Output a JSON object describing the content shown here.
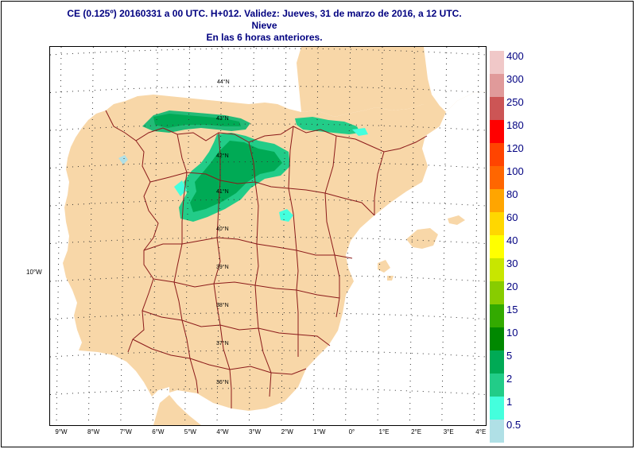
{
  "title": {
    "line1": "CE (0.125º) 20160331 a 00 UTC.  H+012. Validez: Jueves, 31 de marzo de 2016,  a  12 UTC.",
    "line2": "Nieve",
    "line3": "En las 6 horas anteriores."
  },
  "map": {
    "land_color": "#f8d7a8",
    "sea_color": "#ffffff",
    "border_color": "#8b1a1a",
    "grid_color": "#333333",
    "left_longitude_label": "10°W",
    "lon_labels": [
      "9°W",
      "8°W",
      "7°W",
      "6°W",
      "5°W",
      "4°W",
      "3°W",
      "2°W",
      "1°W",
      "0°",
      "1°E",
      "2°E",
      "3°E",
      "4°E"
    ],
    "lat_labels": [
      "44°N",
      "43°N",
      "42°N",
      "41°N",
      "40°N",
      "39°N",
      "38°N",
      "37°N",
      "36°N"
    ]
  },
  "legend": {
    "items": [
      {
        "label": "400",
        "color": "#f0c8c8"
      },
      {
        "label": "300",
        "color": "#e09a9a"
      },
      {
        "label": "250",
        "color": "#cc5555"
      },
      {
        "label": "180",
        "color": "#ff0000"
      },
      {
        "label": "120",
        "color": "#ff4400"
      },
      {
        "label": "100",
        "color": "#ff6600"
      },
      {
        "label": "80",
        "color": "#ffa500"
      },
      {
        "label": "60",
        "color": "#ffd700"
      },
      {
        "label": "40",
        "color": "#ffff00"
      },
      {
        "label": "30",
        "color": "#c8e600"
      },
      {
        "label": "20",
        "color": "#88cc00"
      },
      {
        "label": "15",
        "color": "#33aa00"
      },
      {
        "label": "10",
        "color": "#008800"
      },
      {
        "label": "5",
        "color": "#00aa55"
      },
      {
        "label": "2",
        "color": "#22cc88"
      },
      {
        "label": "1",
        "color": "#44ffdd"
      },
      {
        "label": "0.5",
        "color": "#b0e0e6"
      }
    ]
  }
}
